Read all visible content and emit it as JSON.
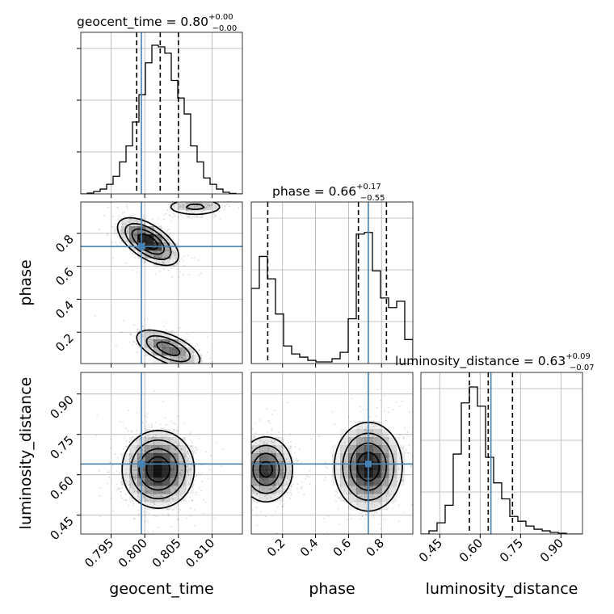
{
  "colors": {
    "truth": "#4682b4",
    "histogram": "#000000",
    "density": "#000000",
    "grid": "#b0b0b0"
  },
  "titles": {
    "geocent_time": {
      "main": "geocent_time = 0.80",
      "sup": "+0.00",
      "sub": "−0.00"
    },
    "phase": {
      "main": "phase = 0.66",
      "sup": "+0.17",
      "sub": "−0.55"
    },
    "luminosity_distance": {
      "main": "luminosity_distance = 0.63",
      "sup": "+0.09",
      "sub": "−0.07"
    }
  },
  "axis_labels": {
    "x0": "geocent_time",
    "x1": "phase",
    "x2": "luminosity_distance",
    "y1": "phase",
    "y2": "luminosity_distance"
  },
  "chart_data": {
    "type": "corner",
    "parameters": [
      "geocent_time",
      "phase",
      "luminosity_distance"
    ],
    "truths": {
      "geocent_time": 0.7995,
      "phase": 0.72,
      "luminosity_distance": 0.64
    },
    "ranges": {
      "geocent_time": [
        0.7905,
        0.8145
      ],
      "phase": [
        0.01,
        0.99
      ],
      "luminosity_distance": [
        0.38,
        0.98
      ]
    },
    "ticks": {
      "geocent_time": [
        "0.795",
        "0.800",
        "0.805",
        "0.810"
      ],
      "phase": [
        "0.2",
        "0.4",
        "0.6",
        "0.8"
      ],
      "luminosity_distance": [
        "0.45",
        "0.60",
        "0.75",
        "0.90"
      ]
    },
    "tick_values": {
      "geocent_time": [
        0.795,
        0.8,
        0.805,
        0.81
      ],
      "phase": [
        0.2,
        0.4,
        0.6,
        0.8
      ],
      "luminosity_distance": [
        0.45,
        0.6,
        0.75,
        0.9
      ]
    },
    "quantiles": {
      "geocent_time": [
        0.7988,
        0.8023,
        0.805
      ],
      "phase": [
        0.11,
        0.66,
        0.83
      ],
      "luminosity_distance": [
        0.56,
        0.63,
        0.72
      ]
    },
    "histograms": {
      "geocent_time": {
        "x_min": 0.7905,
        "x_max": 0.8145,
        "counts": [
          0,
          0.005,
          0.015,
          0.03,
          0.06,
          0.11,
          0.2,
          0.3,
          0.45,
          0.62,
          0.82,
          0.93,
          0.92,
          0.88,
          0.71,
          0.6,
          0.5,
          0.3,
          0.2,
          0.1,
          0.06,
          0.03,
          0.01,
          0.003,
          0
        ]
      },
      "phase": {
        "x_min": 0.01,
        "x_max": 0.99,
        "counts": [
          0.47,
          0.67,
          0.53,
          0.31,
          0.11,
          0.06,
          0.04,
          0.02,
          0.01,
          0.01,
          0.03,
          0.07,
          0.28,
          0.81,
          0.82,
          0.58,
          0.41,
          0.35,
          0.39,
          0.15
        ]
      },
      "luminosity_distance": {
        "x_min": 0.38,
        "x_max": 0.98,
        "counts": [
          0,
          0.02,
          0.07,
          0.18,
          0.5,
          0.82,
          0.92,
          0.8,
          0.48,
          0.32,
          0.22,
          0.11,
          0.08,
          0.05,
          0.03,
          0.02,
          0.01,
          0.005,
          0,
          0
        ]
      }
    },
    "density_blobs": {
      "phase_vs_geocent_time": [
        {
          "cx": 0.8005,
          "cy": 0.75,
          "sx": 0.0022,
          "sy": 0.07,
          "rho": -0.6,
          "w": 1.0
        },
        {
          "cx": 0.8035,
          "cy": 0.1,
          "sx": 0.0025,
          "sy": 0.06,
          "rho": -0.6,
          "w": 0.7
        },
        {
          "cx": 0.8075,
          "cy": 0.96,
          "sx": 0.0025,
          "sy": 0.03,
          "rho": 0.0,
          "w": 0.35
        }
      ],
      "luminosity_distance_vs_geocent_time": [
        {
          "cx": 0.802,
          "cy": 0.62,
          "sx": 0.0026,
          "sy": 0.07,
          "rho": 0.0,
          "w": 1.0
        }
      ],
      "luminosity_distance_vs_phase": [
        {
          "cx": 0.1,
          "cy": 0.62,
          "sx": 0.08,
          "sy": 0.06,
          "rho": 0.0,
          "w": 0.9
        },
        {
          "cx": 0.72,
          "cy": 0.63,
          "sx": 0.1,
          "sy": 0.08,
          "rho": 0.0,
          "w": 1.0
        }
      ]
    }
  }
}
